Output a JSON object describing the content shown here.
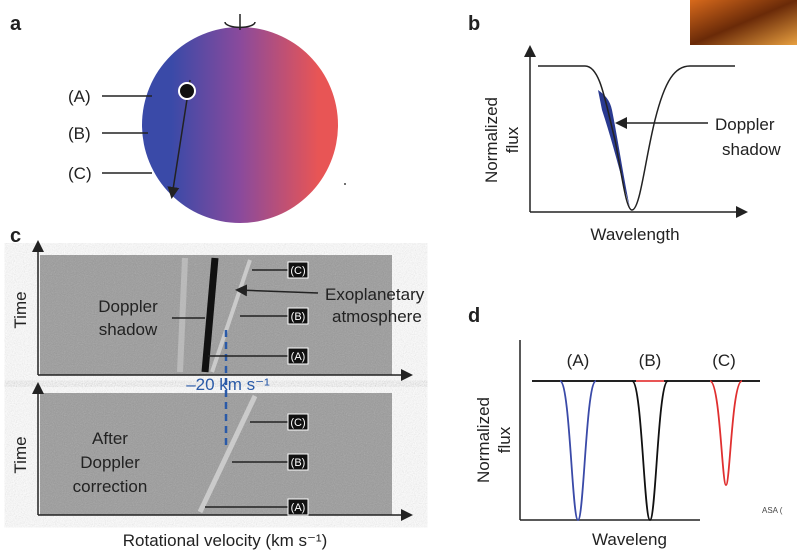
{
  "panels": {
    "a": {
      "label": "a",
      "points": [
        "(A)",
        "(B)",
        "(C)"
      ]
    },
    "b": {
      "label": "b",
      "y_axis": [
        "Normalized",
        "flux"
      ],
      "x_axis": "Wavelength",
      "annotation": [
        "Doppler",
        "shadow"
      ]
    },
    "c": {
      "label": "c",
      "y_axis_top": "Time",
      "y_axis_bottom": "Time",
      "shadow": [
        "Doppler",
        "shadow"
      ],
      "atmosphere": [
        "Exoplanetary",
        "atmosphere"
      ],
      "markers_top": [
        "(C)",
        "(B)",
        "(A)"
      ],
      "velocity": "–20 km s⁻¹",
      "correction": [
        "After",
        "Doppler",
        "correction"
      ],
      "markers_bottom": [
        "(C)",
        "(B)",
        "(A)"
      ],
      "x_axis": "Rotational velocity (km s⁻¹)"
    },
    "d": {
      "label": "d",
      "lines": [
        "(A)",
        "(B)",
        "(C)"
      ],
      "y_axis": [
        "Normalized",
        "flux"
      ],
      "x_axis": "Waveleng",
      "credit": "ASA ("
    }
  }
}
